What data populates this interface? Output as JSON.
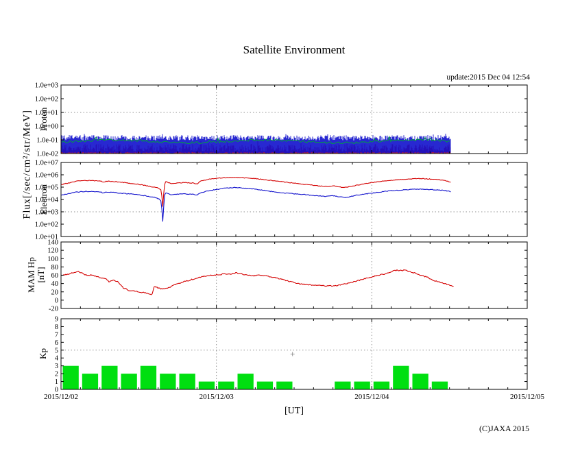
{
  "header": {
    "title": "Satellite Environment",
    "update": "update:2015 Dec 04 12:54"
  },
  "labels": {
    "flux": "Flux[/sec/cm²/str/MeV]",
    "proton": "Proton",
    "electron": "Electron",
    "mam": "MAM Hp",
    "nt": "[nT]",
    "kp": "Kp",
    "ut": "[UT]"
  },
  "footer": {
    "copyright": "(C)JAXA 2015"
  },
  "colors": {
    "red": "#d40000",
    "blue": "#1111cc",
    "green_line": "#00a040",
    "kp_green": "#00df10",
    "grid": "#909090",
    "frame": "#000000"
  },
  "chart_data": {
    "x_axis": {
      "label": "[UT]",
      "tick_labels": [
        "2015/12/02",
        "2015/12/03",
        "2015/12/04",
        "2015/12/05"
      ],
      "range_days": [
        0,
        3
      ],
      "minor_ticks_per_day": 8,
      "data_end_day": 2.51
    },
    "panels": [
      {
        "name": "Proton",
        "type": "line",
        "y_axis": {
          "scale": "log",
          "min": 0.01,
          "max": 1000,
          "tick_labels": [
            "1.0e+03",
            "1.0e+02",
            "1.0e+01",
            "1.0e+00",
            "1.0e-01",
            "1.0e-02"
          ]
        },
        "grid": {
          "h_dotted_value": 10,
          "v_dotted_days": [
            1,
            2
          ]
        },
        "noise_bands": [
          {
            "name": "proton-red-channel",
            "color": "#d40000",
            "min": 0.01,
            "typical_max": 0.05,
            "peak_max": 0.11
          },
          {
            "name": "proton-blue-channel",
            "color": "#1111cc",
            "min": 0.012,
            "typical_max": 0.14,
            "peak_max": 0.22
          },
          {
            "name": "proton-green-channel",
            "color": "#00a040",
            "style": "wavy-line",
            "level": 0.07
          }
        ]
      },
      {
        "name": "Electron",
        "type": "line",
        "y_axis": {
          "scale": "log",
          "min": 10,
          "max": 10000000,
          "tick_labels": [
            "1.0e+07",
            "1.0e+06",
            "1.0e+05",
            "1.0e+04",
            "1.0e+03",
            "1.0e+02",
            "1.0e+01"
          ]
        },
        "grid": {
          "h_dotted_value": 1000,
          "v_dotted_days": [
            1,
            2
          ]
        },
        "series": [
          {
            "name": "electron-high",
            "color": "#d40000",
            "points": [
              [
                0,
                160000.0
              ],
              [
                0.05,
                220000.0
              ],
              [
                0.1,
                300000.0
              ],
              [
                0.15,
                350000.0
              ],
              [
                0.2,
                340000.0
              ],
              [
                0.25,
                320000.0
              ],
              [
                0.27,
                260000.0
              ],
              [
                0.3,
                300000.0
              ],
              [
                0.35,
                280000.0
              ],
              [
                0.4,
                240000.0
              ],
              [
                0.45,
                200000.0
              ],
              [
                0.5,
                170000.0
              ],
              [
                0.55,
                130000.0
              ],
              [
                0.6,
                100000.0
              ],
              [
                0.63,
                80000.0
              ],
              [
                0.645,
                60000.0
              ],
              [
                0.655,
                2500.0
              ],
              [
                0.665,
                150000.0
              ],
              [
                0.675,
                320000.0
              ],
              [
                0.69,
                240000.0
              ],
              [
                0.71,
                200000.0
              ],
              [
                0.75,
                220000.0
              ],
              [
                0.8,
                230000.0
              ],
              [
                0.85,
                220000.0
              ],
              [
                0.875,
                180000.0
              ],
              [
                0.9,
                320000.0
              ],
              [
                0.95,
                450000.0
              ],
              [
                1.0,
                520000.0
              ],
              [
                1.05,
                580000.0
              ],
              [
                1.1,
                620000.0
              ],
              [
                1.15,
                600000.0
              ],
              [
                1.2,
                550000.0
              ],
              [
                1.25,
                500000.0
              ],
              [
                1.3,
                420000.0
              ],
              [
                1.35,
                350000.0
              ],
              [
                1.4,
                300000.0
              ],
              [
                1.45,
                250000.0
              ],
              [
                1.5,
                220000.0
              ],
              [
                1.55,
                180000.0
              ],
              [
                1.6,
                150000.0
              ],
              [
                1.65,
                130000.0
              ],
              [
                1.68,
                120000.0
              ],
              [
                1.72,
                110000.0
              ],
              [
                1.76,
                130000.0
              ],
              [
                1.8,
                100000.0
              ],
              [
                1.83,
                95000.0
              ],
              [
                1.87,
                120000.0
              ],
              [
                1.9,
                140000.0
              ],
              [
                1.95,
                190000.0
              ],
              [
                2.0,
                240000.0
              ],
              [
                2.05,
                290000.0
              ],
              [
                2.1,
                340000.0
              ],
              [
                2.15,
                390000.0
              ],
              [
                2.2,
                430000.0
              ],
              [
                2.25,
                470000.0
              ],
              [
                2.3,
                500000.0
              ],
              [
                2.35,
                470000.0
              ],
              [
                2.4,
                430000.0
              ],
              [
                2.45,
                380000.0
              ],
              [
                2.48,
                320000.0
              ],
              [
                2.51,
                240000.0
              ]
            ]
          },
          {
            "name": "electron-low",
            "color": "#1111cc",
            "points": [
              [
                0,
                22000.0
              ],
              [
                0.05,
                30000.0
              ],
              [
                0.1,
                40000.0
              ],
              [
                0.15,
                45000.0
              ],
              [
                0.2,
                44000.0
              ],
              [
                0.25,
                42000.0
              ],
              [
                0.27,
                34000.0
              ],
              [
                0.3,
                40000.0
              ],
              [
                0.35,
                36000.0
              ],
              [
                0.4,
                31000.0
              ],
              [
                0.45,
                28000.0
              ],
              [
                0.5,
                24000.0
              ],
              [
                0.55,
                19000.0
              ],
              [
                0.6,
                15000.0
              ],
              [
                0.63,
                11000.0
              ],
              [
                0.645,
                7000.0
              ],
              [
                0.655,
                150.0
              ],
              [
                0.665,
                20000.0
              ],
              [
                0.675,
                36000.0
              ],
              [
                0.69,
                28000.0
              ],
              [
                0.71,
                25000.0
              ],
              [
                0.75,
                27000.0
              ],
              [
                0.8,
                28000.0
              ],
              [
                0.85,
                26000.0
              ],
              [
                0.875,
                22000.0
              ],
              [
                0.9,
                36000.0
              ],
              [
                0.95,
                50000.0
              ],
              [
                1.0,
                65000.0
              ],
              [
                1.05,
                80000.0
              ],
              [
                1.1,
                90000.0
              ],
              [
                1.12,
                95000.0
              ],
              [
                1.15,
                90000.0
              ],
              [
                1.2,
                80000.0
              ],
              [
                1.25,
                70000.0
              ],
              [
                1.3,
                55000.0
              ],
              [
                1.35,
                45000.0
              ],
              [
                1.4,
                38000.0
              ],
              [
                1.45,
                32000.0
              ],
              [
                1.5,
                29000.0
              ],
              [
                1.55,
                26000.0
              ],
              [
                1.6,
                23000.0
              ],
              [
                1.65,
                20000.0
              ],
              [
                1.7,
                18000.0
              ],
              [
                1.75,
                20000.0
              ],
              [
                1.8,
                16000.0
              ],
              [
                1.83,
                14000.0
              ],
              [
                1.87,
                18000.0
              ],
              [
                1.9,
                22000.0
              ],
              [
                1.95,
                27000.0
              ],
              [
                2.0,
                33000.0
              ],
              [
                2.05,
                40000.0
              ],
              [
                2.1,
                48000.0
              ],
              [
                2.15,
                54000.0
              ],
              [
                2.2,
                60000.0
              ],
              [
                2.25,
                65000.0
              ],
              [
                2.3,
                70000.0
              ],
              [
                2.35,
                66000.0
              ],
              [
                2.4,
                62000.0
              ],
              [
                2.45,
                56000.0
              ],
              [
                2.48,
                50000.0
              ],
              [
                2.51,
                42000.0
              ]
            ]
          }
        ]
      },
      {
        "name": "MAM Hp [nT]",
        "type": "line",
        "y_axis": {
          "scale": "linear",
          "min": -20,
          "max": 140,
          "tick_labels": [
            "140",
            "120",
            "100",
            "80",
            "60",
            "40",
            "20",
            "0",
            "-20"
          ]
        },
        "grid": {
          "h_dotted_value": null,
          "v_dotted_days": [
            1,
            2
          ]
        },
        "series": [
          {
            "name": "mam-hp",
            "color": "#d40000",
            "points": [
              [
                0,
                60
              ],
              [
                0.04,
                62
              ],
              [
                0.08,
                66
              ],
              [
                0.11,
                70
              ],
              [
                0.14,
                64
              ],
              [
                0.17,
                59
              ],
              [
                0.2,
                61
              ],
              [
                0.23,
                57
              ],
              [
                0.26,
                53
              ],
              [
                0.29,
                51
              ],
              [
                0.31,
                43
              ],
              [
                0.33,
                48
              ],
              [
                0.36,
                46
              ],
              [
                0.4,
                30
              ],
              [
                0.44,
                23
              ],
              [
                0.48,
                21
              ],
              [
                0.52,
                19
              ],
              [
                0.55,
                17
              ],
              [
                0.575,
                14
              ],
              [
                0.585,
                13
              ],
              [
                0.6,
                34
              ],
              [
                0.62,
                30
              ],
              [
                0.64,
                27
              ],
              [
                0.67,
                28
              ],
              [
                0.7,
                31
              ],
              [
                0.74,
                38
              ],
              [
                0.78,
                43
              ],
              [
                0.82,
                47
              ],
              [
                0.86,
                52
              ],
              [
                0.9,
                56
              ],
              [
                0.95,
                59
              ],
              [
                1.0,
                61
              ],
              [
                1.05,
                63
              ],
              [
                1.08,
                62
              ],
              [
                1.13,
                66
              ],
              [
                1.16,
                63
              ],
              [
                1.2,
                61
              ],
              [
                1.24,
                59
              ],
              [
                1.28,
                60
              ],
              [
                1.32,
                58
              ],
              [
                1.36,
                55
              ],
              [
                1.4,
                52
              ],
              [
                1.44,
                48
              ],
              [
                1.48,
                44
              ],
              [
                1.52,
                40
              ],
              [
                1.56,
                38
              ],
              [
                1.6,
                37
              ],
              [
                1.64,
                36
              ],
              [
                1.68,
                35
              ],
              [
                1.72,
                34
              ],
              [
                1.76,
                35
              ],
              [
                1.8,
                37
              ],
              [
                1.84,
                40
              ],
              [
                1.88,
                44
              ],
              [
                1.92,
                48
              ],
              [
                1.96,
                52
              ],
              [
                2.0,
                56
              ],
              [
                2.04,
                60
              ],
              [
                2.08,
                63
              ],
              [
                2.11,
                66
              ],
              [
                2.13,
                70
              ],
              [
                2.16,
                72
              ],
              [
                2.19,
                71
              ],
              [
                2.21,
                73
              ],
              [
                2.24,
                69
              ],
              [
                2.27,
                66
              ],
              [
                2.3,
                62
              ],
              [
                2.33,
                58
              ],
              [
                2.36,
                55
              ],
              [
                2.38,
                50
              ],
              [
                2.41,
                46
              ],
              [
                2.44,
                43
              ],
              [
                2.47,
                40
              ],
              [
                2.5,
                36
              ],
              [
                2.53,
                33
              ]
            ]
          }
        ]
      },
      {
        "name": "Kp",
        "type": "bar",
        "y_axis": {
          "scale": "linear",
          "min": 0,
          "max": 9,
          "tick_labels": [
            "9",
            "8",
            "7",
            "6",
            "5",
            "4",
            "3",
            "2",
            "1",
            "0"
          ]
        },
        "grid": {
          "h_dotted_value": 5,
          "v_dotted_days": [
            1,
            2
          ]
        },
        "bar_color": "#00df10",
        "hours_per_bar": 3,
        "values": [
          3,
          2,
          3,
          2,
          3,
          2,
          2,
          1,
          1,
          2,
          1,
          1,
          null,
          null,
          1,
          1,
          1,
          3,
          2,
          1,
          null,
          null,
          null,
          null
        ],
        "annotations": [
          {
            "type": "plus-marker",
            "day": 1.49,
            "value": 4.5
          }
        ]
      }
    ]
  }
}
